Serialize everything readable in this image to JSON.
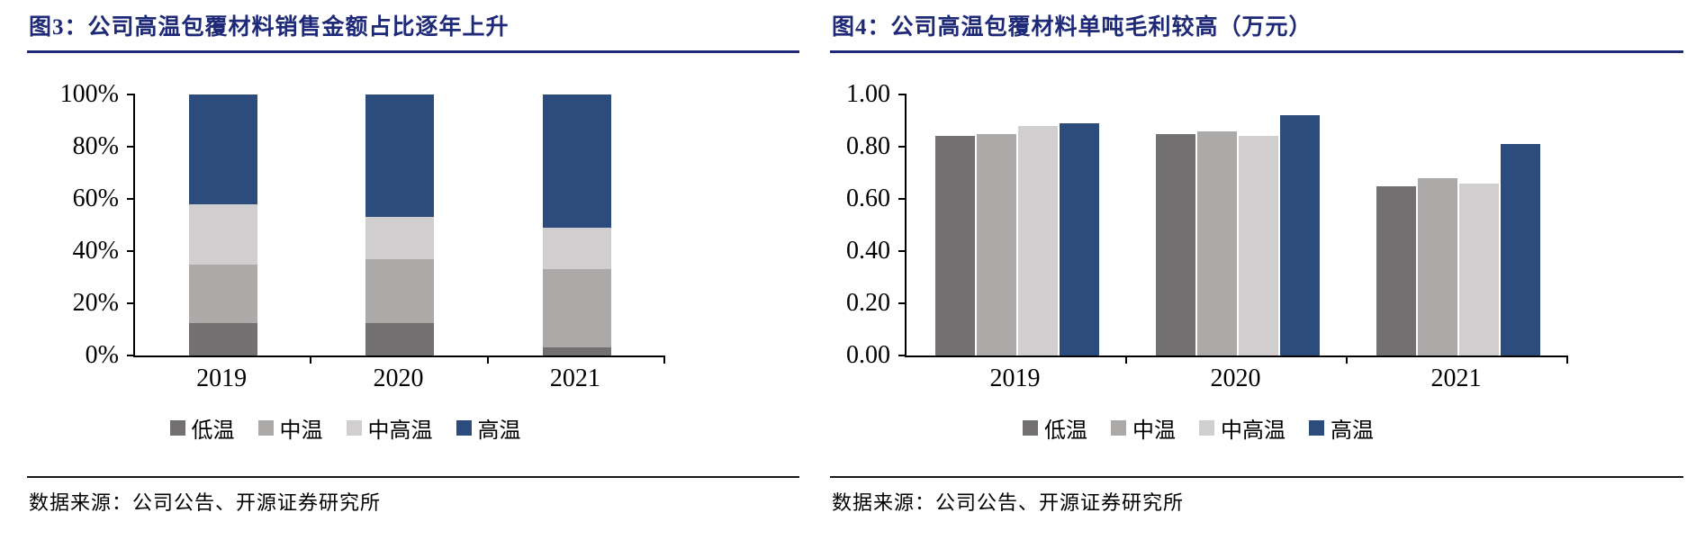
{
  "colors": {
    "title_navy": "#1E2A78",
    "series": {
      "low": "#727070",
      "mid": "#ABAAA8",
      "mid_high": "#D0CECF",
      "high": "#2B4C7D"
    },
    "axis": "#000000",
    "separator": "#1a1a1a"
  },
  "panels": [
    {
      "title": "图3：公司高温包覆材料销售金额占比逐年上升",
      "source": "数据来源：公司公告、开源证券研究所"
    },
    {
      "title": "图4：公司高温包覆材料单吨毛利较高（万元）",
      "source": "数据来源：公司公告、开源证券研究所"
    }
  ],
  "chart_data": [
    {
      "type": "bar",
      "variant": "stacked-100pct",
      "title": "图3：公司高温包覆材料销售金额占比逐年上升",
      "categories": [
        "2019",
        "2020",
        "2021"
      ],
      "series": [
        {
          "name": "低温",
          "color": "#727070",
          "values": [
            12.5,
            12.5,
            3
          ]
        },
        {
          "name": "中温",
          "color": "#ABAAA8",
          "values": [
            22.5,
            24.5,
            30
          ]
        },
        {
          "name": "中高温",
          "color": "#D0CECF",
          "values": [
            23,
            16,
            16
          ]
        },
        {
          "name": "高温",
          "color": "#2B4C7D",
          "values": [
            42,
            47,
            51
          ]
        }
      ],
      "y_ticks": [
        "100%",
        "80%",
        "60%",
        "40%",
        "20%",
        "0%"
      ],
      "ylim": [
        0,
        100
      ],
      "grid": false,
      "legend_position": "bottom"
    },
    {
      "type": "bar",
      "variant": "grouped",
      "title": "图4：公司高温包覆材料单吨毛利较高（万元）",
      "categories": [
        "2019",
        "2020",
        "2021"
      ],
      "series": [
        {
          "name": "低温",
          "color": "#727070",
          "values": [
            0.84,
            0.85,
            0.65
          ]
        },
        {
          "name": "中温",
          "color": "#ABAAA8",
          "values": [
            0.85,
            0.86,
            0.68
          ]
        },
        {
          "name": "中高温",
          "color": "#D0CECF",
          "values": [
            0.88,
            0.84,
            0.66
          ]
        },
        {
          "name": "高温",
          "color": "#2B4C7D",
          "values": [
            0.89,
            0.92,
            0.81
          ]
        }
      ],
      "y_ticks": [
        "1.00",
        "0.80",
        "0.60",
        "0.40",
        "0.20",
        "0.00"
      ],
      "ylim": [
        0,
        1
      ],
      "grid": false,
      "legend_position": "bottom"
    }
  ]
}
